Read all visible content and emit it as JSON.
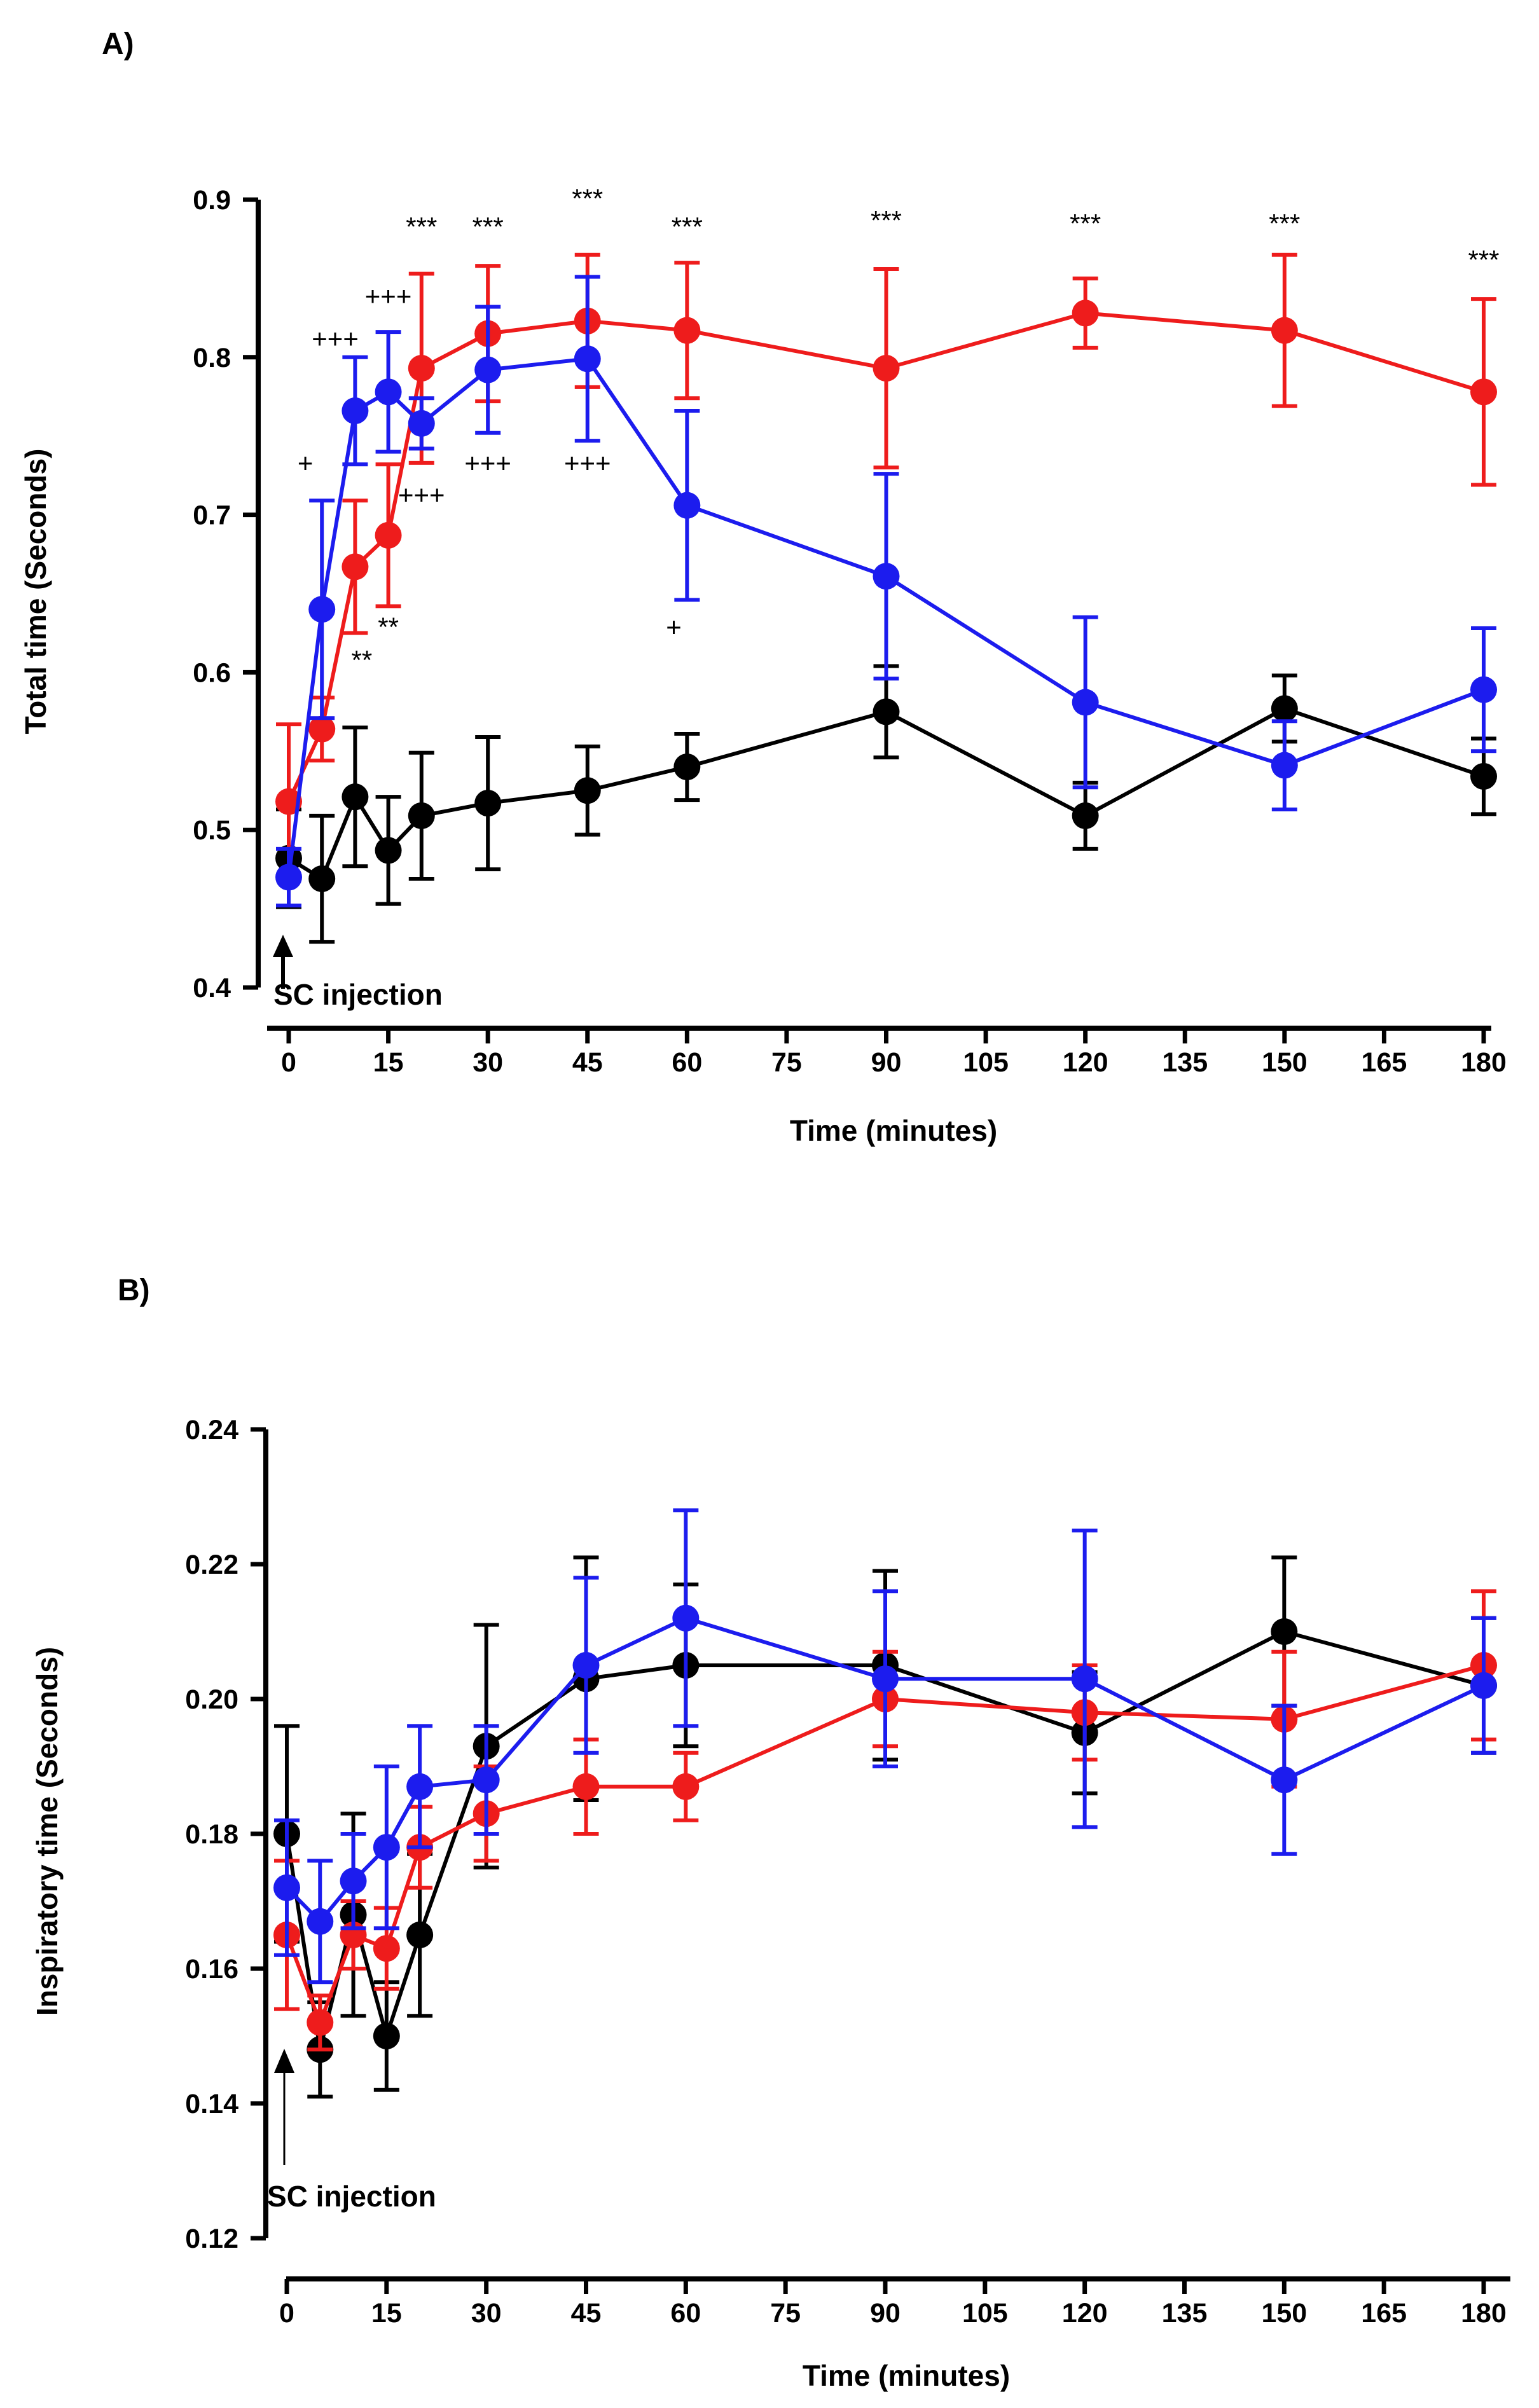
{
  "chart_data": [
    {
      "type": "line",
      "panel_label": "A)",
      "title": "",
      "xlabel": "Time (minutes)",
      "ylabel": "Total time (Seconds)",
      "xlim": [
        0,
        180
      ],
      "ylim": [
        0.4,
        0.9
      ],
      "xticks": [
        0,
        15,
        30,
        45,
        60,
        75,
        90,
        105,
        120,
        135,
        150,
        165,
        180
      ],
      "yticks": [
        "0.4",
        "0.5",
        "0.6",
        "0.7",
        "0.8",
        "0.9"
      ],
      "injection_label": "SC injection",
      "series": [
        {
          "name": "black",
          "color": "#000000",
          "x": [
            0,
            5,
            10,
            15,
            20,
            30,
            45,
            60,
            90,
            120,
            150,
            180
          ],
          "y": [
            0.482,
            0.469,
            0.521,
            0.487,
            0.509,
            0.517,
            0.525,
            0.54,
            0.575,
            0.509,
            0.577,
            0.534
          ],
          "err": [
            0.031,
            0.04,
            0.044,
            0.034,
            0.04,
            0.042,
            0.028,
            0.021,
            0.029,
            0.021,
            0.021,
            0.024
          ]
        },
        {
          "name": "red",
          "color": "#ee1c1c",
          "x": [
            0,
            5,
            10,
            15,
            20,
            30,
            45,
            60,
            90,
            120,
            150,
            180
          ],
          "y": [
            0.518,
            0.564,
            0.667,
            0.687,
            0.793,
            0.815,
            0.823,
            0.817,
            0.793,
            0.828,
            0.817,
            0.778
          ],
          "err": [
            0.049,
            0.02,
            0.042,
            0.045,
            0.06,
            0.043,
            0.042,
            0.043,
            0.063,
            0.022,
            0.048,
            0.059
          ]
        },
        {
          "name": "blue",
          "color": "#1c1cee",
          "x": [
            0,
            5,
            10,
            15,
            20,
            30,
            45,
            60,
            90,
            120,
            150,
            180
          ],
          "y": [
            0.47,
            0.64,
            0.766,
            0.778,
            0.758,
            0.792,
            0.799,
            0.706,
            0.661,
            0.581,
            0.541,
            0.589
          ],
          "err": [
            0.018,
            0.069,
            0.034,
            0.038,
            0.016,
            0.04,
            0.052,
            0.06,
            0.065,
            0.054,
            0.028,
            0.039
          ]
        }
      ],
      "annotations": [
        {
          "text": "***",
          "x": 20,
          "y": 0.877
        },
        {
          "text": "***",
          "x": 30,
          "y": 0.877
        },
        {
          "text": "***",
          "x": 45,
          "y": 0.895
        },
        {
          "text": "***",
          "x": 60,
          "y": 0.877
        },
        {
          "text": "***",
          "x": 90,
          "y": 0.881
        },
        {
          "text": "***",
          "x": 120,
          "y": 0.879
        },
        {
          "text": "***",
          "x": 150,
          "y": 0.879
        },
        {
          "text": "***",
          "x": 180,
          "y": 0.856
        },
        {
          "text": "+++",
          "x": 15,
          "y": 0.833
        },
        {
          "text": "+++",
          "x": 7,
          "y": 0.806
        },
        {
          "text": "+",
          "x": 2.5,
          "y": 0.727
        },
        {
          "text": "+++",
          "x": 20,
          "y": 0.707
        },
        {
          "text": "+++",
          "x": 30,
          "y": 0.727
        },
        {
          "text": "+++",
          "x": 45,
          "y": 0.727
        },
        {
          "text": "**",
          "x": 15,
          "y": 0.623
        },
        {
          "text": "**",
          "x": 11,
          "y": 0.602
        },
        {
          "text": "+",
          "x": 58,
          "y": 0.623
        }
      ]
    },
    {
      "type": "line",
      "panel_label": "B)",
      "title": "",
      "xlabel": "Time (minutes)",
      "ylabel": "Inspiratory time (Seconds)",
      "xlim": [
        0,
        180
      ],
      "ylim": [
        0.12,
        0.24
      ],
      "xticks": [
        0,
        15,
        30,
        45,
        60,
        75,
        90,
        105,
        120,
        135,
        150,
        165,
        180
      ],
      "yticks": [
        "0.12",
        "0.14",
        "0.16",
        "0.18",
        "0.20",
        "0.22",
        "0.24"
      ],
      "injection_label": "SC injection",
      "series": [
        {
          "name": "black",
          "color": "#000000",
          "x": [
            0,
            5,
            10,
            15,
            20,
            30,
            45,
            60,
            90,
            120,
            150,
            180
          ],
          "y": [
            0.18,
            0.148,
            0.168,
            0.15,
            0.165,
            0.193,
            0.203,
            0.205,
            0.205,
            0.195,
            0.21,
            0.202
          ],
          "err": [
            0.016,
            0.007,
            0.015,
            0.008,
            0.012,
            0.018,
            0.018,
            0.012,
            0.014,
            0.009,
            0.011,
            0.01
          ]
        },
        {
          "name": "red",
          "color": "#ee1c1c",
          "x": [
            0,
            5,
            10,
            15,
            20,
            30,
            45,
            60,
            90,
            120,
            150,
            180
          ],
          "y": [
            0.165,
            0.152,
            0.165,
            0.163,
            0.178,
            0.183,
            0.187,
            0.187,
            0.2,
            0.198,
            0.197,
            0.205
          ],
          "err": [
            0.011,
            0.004,
            0.005,
            0.006,
            0.006,
            0.007,
            0.007,
            0.005,
            0.007,
            0.007,
            0.01,
            0.011
          ]
        },
        {
          "name": "blue",
          "color": "#1c1cee",
          "x": [
            0,
            5,
            10,
            15,
            20,
            30,
            45,
            60,
            90,
            120,
            150,
            180
          ],
          "y": [
            0.172,
            0.167,
            0.173,
            0.178,
            0.187,
            0.188,
            0.205,
            0.212,
            0.203,
            0.203,
            0.188,
            0.202
          ],
          "err": [
            0.01,
            0.009,
            0.007,
            0.012,
            0.009,
            0.008,
            0.013,
            0.016,
            0.013,
            0.022,
            0.011,
            0.01
          ]
        }
      ],
      "annotations": []
    }
  ]
}
